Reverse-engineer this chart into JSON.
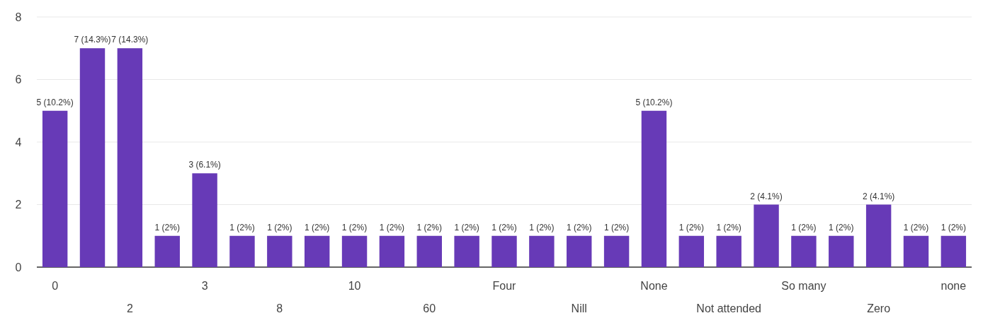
{
  "chart_data": {
    "type": "bar",
    "categories": [
      "0",
      null,
      "2",
      null,
      "3",
      null,
      "8",
      null,
      "10",
      null,
      "60",
      null,
      "Four",
      null,
      "Nill",
      null,
      "None",
      null,
      "Not attended",
      null,
      "So many",
      null,
      "Zero",
      null,
      "none"
    ],
    "values": [
      5,
      7,
      7,
      1,
      3,
      1,
      1,
      1,
      1,
      1,
      1,
      1,
      1,
      1,
      1,
      1,
      5,
      1,
      1,
      2,
      1,
      1,
      2,
      1,
      1
    ],
    "value_labels": [
      "5 (10.2%)",
      "7 (14.3%)",
      "7 (14.3%)",
      "1 (2%)",
      "3 (6.1%)",
      "1 (2%)",
      "1 (2%)",
      "1 (2%)",
      "1 (2%)",
      "1 (2%)",
      "1 (2%)",
      "1 (2%)",
      "1 (2%)",
      "1 (2%)",
      "1 (2%)",
      "1 (2%)",
      "5 (10.2%)",
      "1 (2%)",
      "1 (2%)",
      "2 (4.1%)",
      "1 (2%)",
      "1 (2%)",
      "2 (4.1%)",
      "1 (2%)",
      "1 (2%)"
    ],
    "color": "#673ab7",
    "ylim": [
      0,
      8
    ],
    "yticks": [
      0,
      2,
      4,
      6,
      8
    ],
    "grid": "y"
  }
}
